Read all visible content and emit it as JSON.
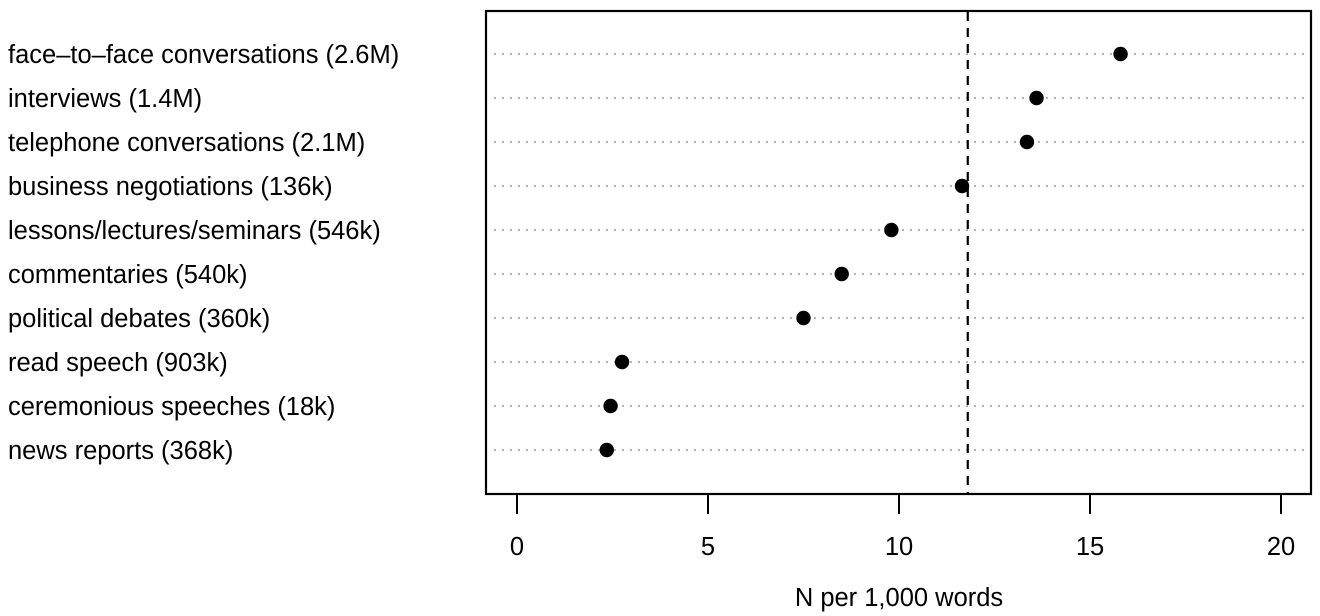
{
  "chart_data": {
    "type": "scatter",
    "subtype": "dot-plot",
    "title": "",
    "xlabel": "N per 1,000 words",
    "ylabel": "",
    "xlim": [
      0,
      20
    ],
    "xticks": [
      0,
      5,
      10,
      15,
      20
    ],
    "grid": "horizontal dotted lines per category",
    "legend": null,
    "reference_line": {
      "x": 11.8,
      "style": "dashed",
      "color": "#000000"
    },
    "categories": [
      "face–to–face conversations  (2.6M)",
      "interviews (1.4M)",
      "telephone conversations (2.1M)",
      "business negotiations (136k)",
      "lessons/lectures/seminars (546k)",
      "commentaries (540k)",
      "political debates (360k)",
      "read speech (903k)",
      "ceremonious speeches (18k)",
      "news reports (368k)"
    ],
    "values": [
      15.8,
      13.6,
      13.35,
      11.65,
      9.8,
      8.5,
      7.5,
      2.75,
      2.45,
      2.35
    ],
    "colors": {
      "point": "#000000",
      "grid": "#9a9a9a",
      "frame": "#000000"
    }
  }
}
